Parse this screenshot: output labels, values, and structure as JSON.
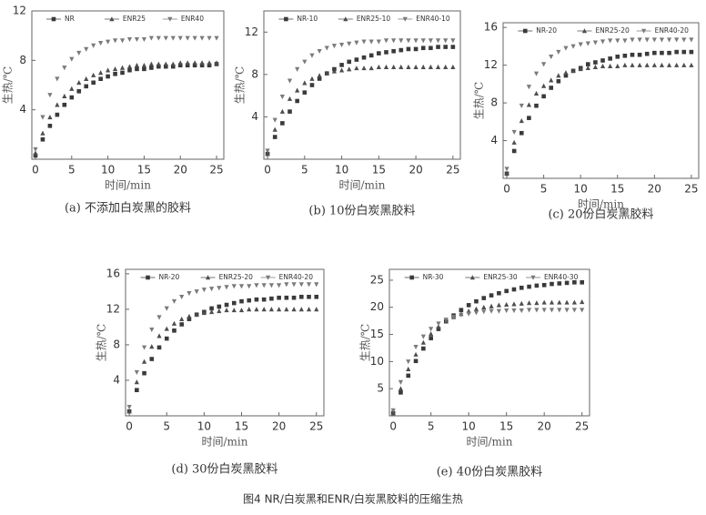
{
  "figure_caption": "图4 NR/白炭黑和ENR/白炭黑胶料的压缩生热",
  "chart_data": [
    {
      "type": "line",
      "subtitle": "(a) 不添加白炭黑的胶料",
      "x_label": "时间/min",
      "y_label": "生热/℃",
      "x": [
        0,
        1,
        2,
        3,
        4,
        5,
        6,
        7,
        8,
        9,
        10,
        11,
        12,
        13,
        14,
        15,
        16,
        17,
        18,
        19,
        20,
        21,
        22,
        23,
        24,
        25
      ],
      "xlim": [
        -0.5,
        26
      ],
      "xticks": [
        0,
        5,
        10,
        15,
        20,
        25
      ],
      "ylim": [
        0,
        12
      ],
      "yticks": [
        4,
        8,
        12
      ],
      "legend": "top",
      "series": [
        {
          "name": "NR",
          "color": "#3a3a3a",
          "marker": "square",
          "values": [
            0.3,
            1.6,
            2.7,
            3.6,
            4.4,
            5.0,
            5.5,
            5.9,
            6.2,
            6.5,
            6.7,
            6.9,
            7.0,
            7.2,
            7.3,
            7.3,
            7.4,
            7.5,
            7.5,
            7.5,
            7.6,
            7.6,
            7.6,
            7.6,
            7.6,
            7.7
          ]
        },
        {
          "name": "ENR25",
          "color": "#4d4d4d",
          "marker": "triangle",
          "values": [
            0.5,
            2.1,
            3.4,
            4.4,
            5.1,
            5.7,
            6.2,
            6.5,
            6.8,
            7.0,
            7.2,
            7.3,
            7.4,
            7.5,
            7.6,
            7.6,
            7.7,
            7.7,
            7.7,
            7.7,
            7.8,
            7.8,
            7.8,
            7.8,
            7.8,
            7.8
          ]
        },
        {
          "name": "ENR40",
          "color": "#7a7a7a",
          "marker": "down-triangle",
          "values": [
            0.8,
            3.4,
            5.2,
            6.5,
            7.4,
            8.1,
            8.6,
            8.9,
            9.2,
            9.4,
            9.5,
            9.6,
            9.6,
            9.7,
            9.7,
            9.7,
            9.8,
            9.8,
            9.8,
            9.8,
            9.8,
            9.8,
            9.8,
            9.8,
            9.8,
            9.8
          ]
        }
      ]
    },
    {
      "type": "line",
      "subtitle": "(b) 10份白炭黑胶料",
      "x_label": "时间/min",
      "y_label": "生热/℃",
      "x": [
        0,
        1,
        2,
        3,
        4,
        5,
        6,
        7,
        8,
        9,
        10,
        11,
        12,
        13,
        14,
        15,
        16,
        17,
        18,
        19,
        20,
        21,
        22,
        23,
        24,
        25
      ],
      "xlim": [
        -0.5,
        26
      ],
      "xticks": [
        0,
        5,
        10,
        15,
        20,
        25
      ],
      "ylim": [
        0,
        14
      ],
      "yticks": [
        4,
        8,
        12
      ],
      "legend": "top",
      "series": [
        {
          "name": "NR-10",
          "color": "#3a3a3a",
          "marker": "square",
          "values": [
            0.5,
            2.1,
            3.4,
            4.5,
            5.5,
            6.3,
            7.0,
            7.6,
            8.1,
            8.5,
            8.9,
            9.2,
            9.4,
            9.6,
            9.8,
            10.0,
            10.1,
            10.2,
            10.3,
            10.4,
            10.4,
            10.5,
            10.5,
            10.6,
            10.6,
            10.6
          ]
        },
        {
          "name": "ENR25-10",
          "color": "#4d4d4d",
          "marker": "triangle",
          "values": [
            0.5,
            2.8,
            4.5,
            5.7,
            6.5,
            7.2,
            7.6,
            7.9,
            8.1,
            8.3,
            8.4,
            8.5,
            8.6,
            8.6,
            8.6,
            8.7,
            8.7,
            8.7,
            8.7,
            8.7,
            8.7,
            8.7,
            8.7,
            8.7,
            8.7,
            8.7
          ]
        },
        {
          "name": "ENR40-10",
          "color": "#7a7a7a",
          "marker": "down-triangle",
          "values": [
            0.8,
            3.7,
            5.9,
            7.4,
            8.5,
            9.2,
            9.8,
            10.2,
            10.5,
            10.7,
            10.8,
            10.9,
            11.0,
            11.1,
            11.1,
            11.1,
            11.2,
            11.2,
            11.2,
            11.2,
            11.2,
            11.2,
            11.2,
            11.2,
            11.2,
            11.2
          ]
        }
      ]
    },
    {
      "type": "line",
      "subtitle": "(c) 20份白炭黑胶料",
      "x_label": "时间/min",
      "y_label": "生热/℃",
      "x": [
        0,
        1,
        2,
        3,
        4,
        5,
        6,
        7,
        8,
        9,
        10,
        11,
        12,
        13,
        14,
        15,
        16,
        17,
        18,
        19,
        20,
        21,
        22,
        23,
        24,
        25
      ],
      "xlim": [
        -0.5,
        26
      ],
      "xticks": [
        0,
        5,
        10,
        15,
        20,
        25
      ],
      "ylim": [
        0,
        16.5
      ],
      "yticks": [
        4,
        8,
        12,
        16
      ],
      "legend": "top",
      "series": [
        {
          "name": "NR-20",
          "color": "#3a3a3a",
          "marker": "square",
          "values": [
            0.5,
            2.9,
            4.8,
            6.4,
            7.7,
            8.7,
            9.6,
            10.3,
            10.9,
            11.4,
            11.7,
            12.1,
            12.3,
            12.5,
            12.7,
            12.9,
            13.0,
            13.1,
            13.1,
            13.2,
            13.3,
            13.3,
            13.3,
            13.4,
            13.4,
            13.4
          ]
        },
        {
          "name": "ENR25-20",
          "color": "#4d4d4d",
          "marker": "triangle",
          "values": [
            0.5,
            3.8,
            6.1,
            7.8,
            9.0,
            9.8,
            10.4,
            10.9,
            11.2,
            11.4,
            11.6,
            11.7,
            11.8,
            11.9,
            11.9,
            11.9,
            12.0,
            12.0,
            12.0,
            12.0,
            12.0,
            12.0,
            12.0,
            12.0,
            12.0,
            12.0
          ]
        },
        {
          "name": "ENR40-20",
          "color": "#7a7a7a",
          "marker": "down-triangle",
          "values": [
            1.0,
            4.9,
            7.7,
            9.7,
            11.1,
            12.1,
            12.9,
            13.4,
            13.8,
            14.0,
            14.2,
            14.3,
            14.4,
            14.5,
            14.6,
            14.6,
            14.6,
            14.7,
            14.7,
            14.7,
            14.7,
            14.7,
            14.7,
            14.7,
            14.7,
            14.7
          ]
        }
      ]
    },
    {
      "type": "line",
      "subtitle": "(d) 30份白炭黑胶料",
      "x_label": "时间/min",
      "y_label": "生热/℃",
      "x": [
        0,
        1,
        2,
        3,
        4,
        5,
        6,
        7,
        8,
        9,
        10,
        11,
        12,
        13,
        14,
        15,
        16,
        17,
        18,
        19,
        20,
        21,
        22,
        23,
        24,
        25
      ],
      "xlim": [
        -0.5,
        26
      ],
      "xticks": [
        0,
        5,
        10,
        15,
        20,
        25
      ],
      "ylim": [
        0,
        16.5
      ],
      "yticks": [
        4,
        8,
        12,
        16
      ],
      "legend": "top",
      "series": [
        {
          "name": "NR-20",
          "color": "#3a3a3a",
          "marker": "square",
          "values": [
            0.5,
            2.9,
            4.8,
            6.4,
            7.7,
            8.7,
            9.6,
            10.3,
            10.9,
            11.4,
            11.7,
            12.1,
            12.3,
            12.5,
            12.7,
            12.9,
            13.0,
            13.1,
            13.1,
            13.2,
            13.3,
            13.3,
            13.3,
            13.4,
            13.4,
            13.4
          ]
        },
        {
          "name": "ENR25-20",
          "color": "#4d4d4d",
          "marker": "triangle",
          "values": [
            0.5,
            3.8,
            6.1,
            7.8,
            9.0,
            9.8,
            10.4,
            10.9,
            11.2,
            11.4,
            11.6,
            11.7,
            11.8,
            11.9,
            11.9,
            11.9,
            12.0,
            12.0,
            12.0,
            12.0,
            12.0,
            12.0,
            12.0,
            12.0,
            12.0,
            12.0
          ]
        },
        {
          "name": "ENR40-20",
          "color": "#7a7a7a",
          "marker": "down-triangle",
          "values": [
            1.0,
            4.9,
            7.7,
            9.7,
            11.1,
            12.1,
            12.9,
            13.4,
            13.8,
            14.0,
            14.2,
            14.3,
            14.4,
            14.5,
            14.6,
            14.6,
            14.6,
            14.7,
            14.7,
            14.7,
            14.7,
            14.8,
            14.8,
            14.8,
            14.8,
            14.8
          ]
        }
      ]
    },
    {
      "type": "line",
      "subtitle": "(e) 40份白炭黑胶料",
      "x_label": "时间/min",
      "y_label": "生热/℃",
      "x": [
        0,
        1,
        2,
        3,
        4,
        5,
        6,
        7,
        8,
        9,
        10,
        11,
        12,
        13,
        14,
        15,
        16,
        17,
        18,
        19,
        20,
        21,
        22,
        23,
        24,
        25
      ],
      "xlim": [
        -0.5,
        26
      ],
      "xticks": [
        0,
        5,
        10,
        15,
        20,
        25
      ],
      "ylim": [
        0,
        27
      ],
      "yticks": [
        5,
        10,
        15,
        20,
        25
      ],
      "legend": "top",
      "series": [
        {
          "name": "NR-30",
          "color": "#3a3a3a",
          "marker": "square",
          "values": [
            0.5,
            4.3,
            7.4,
            10.1,
            12.4,
            14.3,
            16.0,
            17.4,
            18.5,
            19.5,
            20.4,
            21.1,
            21.7,
            22.2,
            22.6,
            23.0,
            23.3,
            23.6,
            23.8,
            24.0,
            24.1,
            24.3,
            24.4,
            24.5,
            24.6,
            24.6
          ]
        },
        {
          "name": "ENR25-30",
          "color": "#4d4d4d",
          "marker": "triangle",
          "values": [
            0.5,
            5.0,
            8.6,
            11.3,
            13.5,
            15.1,
            16.4,
            17.4,
            18.2,
            18.8,
            19.3,
            19.7,
            20.0,
            20.2,
            20.4,
            20.5,
            20.6,
            20.7,
            20.8,
            20.8,
            20.9,
            20.9,
            20.9,
            20.9,
            20.9,
            21.0
          ]
        },
        {
          "name": "ENR40-30",
          "color": "#7a7a7a",
          "marker": "down-triangle",
          "values": [
            1.0,
            6.2,
            10.0,
            12.7,
            14.6,
            16.0,
            17.0,
            17.7,
            18.2,
            18.6,
            18.8,
            19.0,
            19.2,
            19.3,
            19.3,
            19.4,
            19.4,
            19.4,
            19.5,
            19.5,
            19.5,
            19.5,
            19.5,
            19.5,
            19.5,
            19.5
          ]
        }
      ]
    }
  ]
}
